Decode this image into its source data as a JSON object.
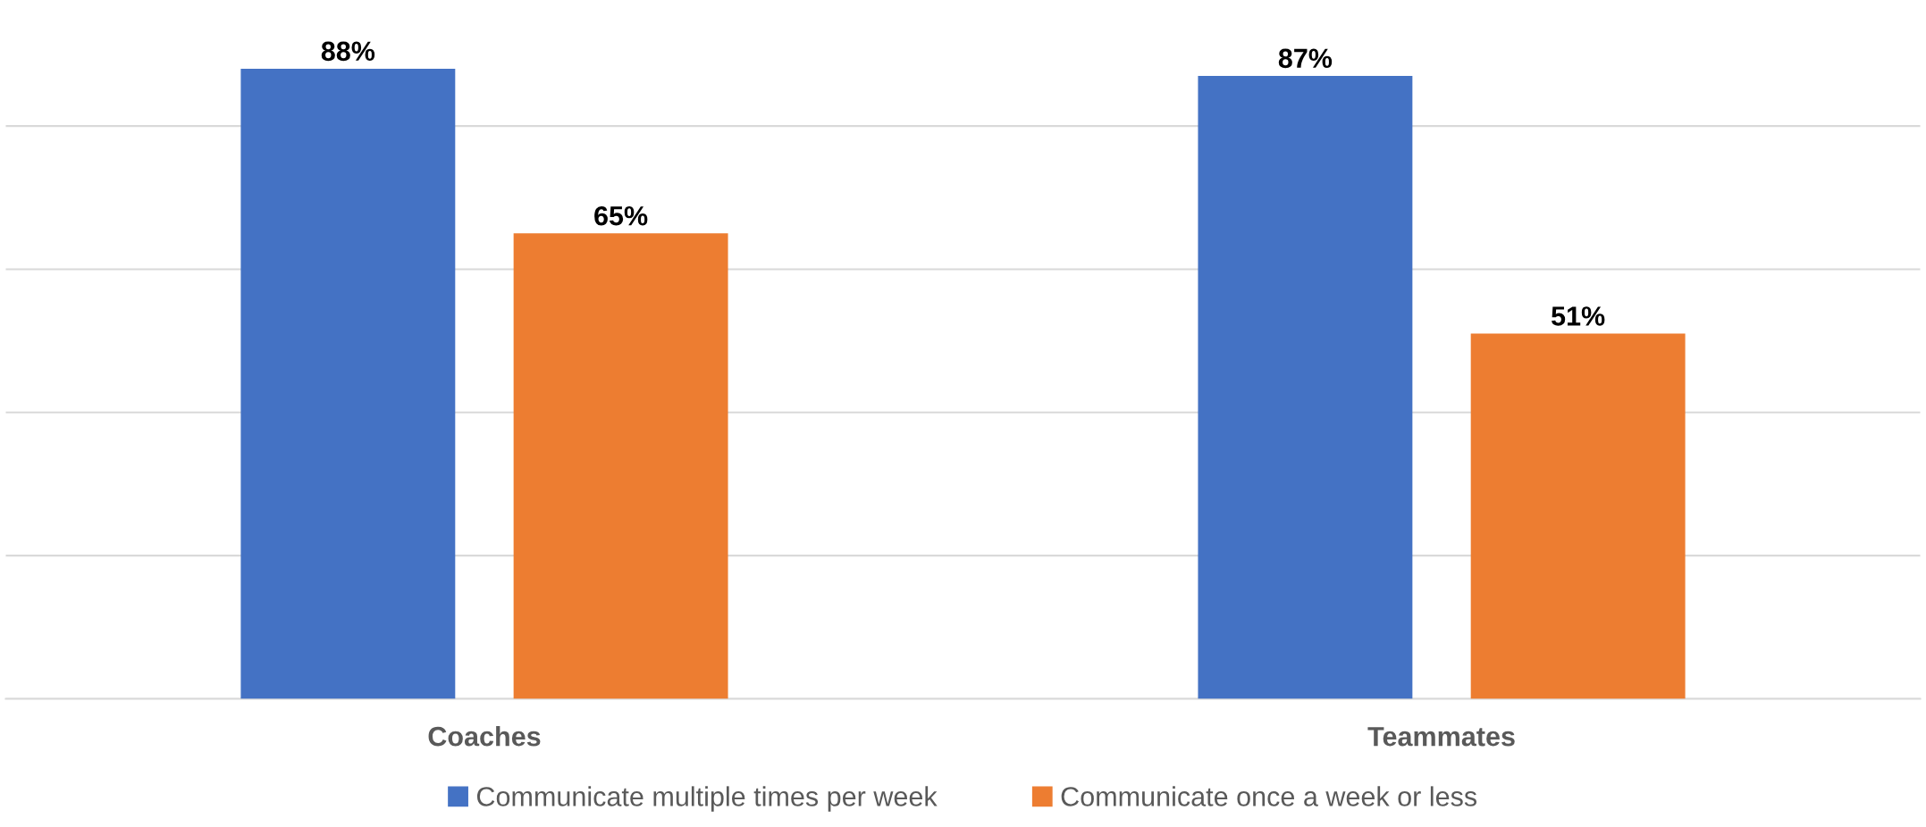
{
  "chart_data": {
    "type": "bar",
    "categories": [
      "Coaches",
      "Teammates"
    ],
    "series": [
      {
        "name": "Communicate multiple times per week",
        "color": "#4472c4",
        "values": [
          88,
          87
        ],
        "value_labels": [
          "88%",
          "87%"
        ]
      },
      {
        "name": "Communicate once a week or less",
        "color": "#ed7d31",
        "values": [
          65,
          51
        ],
        "value_labels": [
          "65%",
          "51%"
        ]
      }
    ],
    "tick_labels": "x",
    "grid": "y",
    "legend": "bottom"
  }
}
